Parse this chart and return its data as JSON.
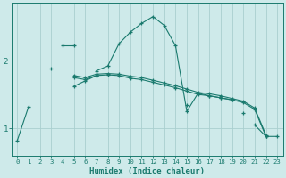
{
  "xlabel": "Humidex (Indice chaleur)",
  "bg_color": "#ceeaea",
  "line_color": "#1a7a6e",
  "grid_color": "#aacfcf",
  "x_ticks": [
    0,
    1,
    2,
    3,
    4,
    5,
    6,
    7,
    8,
    9,
    10,
    11,
    12,
    13,
    14,
    15,
    16,
    17,
    18,
    19,
    20,
    21,
    22,
    23
  ],
  "y_ticks": [
    1,
    2
  ],
  "ylim": [
    0.6,
    2.85
  ],
  "xlim": [
    -0.5,
    23.5
  ],
  "series": [
    {
      "points": [
        [
          0,
          0.82
        ],
        [
          1,
          1.32
        ],
        [
          2,
          null
        ],
        [
          3,
          null
        ],
        [
          4,
          2.22
        ],
        [
          5,
          2.22
        ],
        [
          6,
          null
        ],
        [
          7,
          1.85
        ],
        [
          8,
          1.92
        ],
        [
          9,
          2.25
        ],
        [
          10,
          2.42
        ],
        [
          11,
          2.55
        ],
        [
          12,
          2.65
        ],
        [
          13,
          2.52
        ],
        [
          14,
          2.22
        ],
        [
          15,
          1.25
        ],
        [
          16,
          1.52
        ],
        [
          17,
          1.48
        ],
        [
          18,
          1.45
        ],
        [
          19,
          1.42
        ],
        [
          20,
          null
        ],
        [
          21,
          1.05
        ],
        [
          22,
          0.88
        ],
        [
          23,
          0.88
        ]
      ]
    },
    {
      "points": [
        [
          0,
          null
        ],
        [
          1,
          null
        ],
        [
          2,
          null
        ],
        [
          3,
          1.88
        ],
        [
          4,
          null
        ],
        [
          5,
          1.62
        ],
        [
          6,
          1.7
        ],
        [
          7,
          1.78
        ],
        [
          8,
          null
        ],
        [
          9,
          null
        ],
        [
          10,
          null
        ],
        [
          11,
          null
        ],
        [
          12,
          null
        ],
        [
          13,
          null
        ],
        [
          14,
          null
        ],
        [
          15,
          1.35
        ],
        [
          16,
          null
        ],
        [
          17,
          null
        ],
        [
          18,
          null
        ],
        [
          19,
          null
        ],
        [
          20,
          1.22
        ],
        [
          21,
          null
        ],
        [
          22,
          0.88
        ],
        [
          23,
          null
        ]
      ]
    },
    {
      "points": [
        [
          0,
          null
        ],
        [
          1,
          null
        ],
        [
          2,
          null
        ],
        [
          3,
          null
        ],
        [
          4,
          null
        ],
        [
          5,
          1.75
        ],
        [
          6,
          1.72
        ],
        [
          7,
          1.78
        ],
        [
          8,
          1.79
        ],
        [
          9,
          1.78
        ],
        [
          10,
          1.74
        ],
        [
          11,
          1.72
        ],
        [
          12,
          1.68
        ],
        [
          13,
          1.64
        ],
        [
          14,
          1.6
        ],
        [
          15,
          1.55
        ],
        [
          16,
          1.5
        ],
        [
          17,
          1.48
        ],
        [
          18,
          1.45
        ],
        [
          19,
          1.42
        ],
        [
          20,
          1.38
        ],
        [
          21,
          1.28
        ],
        [
          22,
          0.88
        ],
        [
          23,
          null
        ]
      ]
    },
    {
      "points": [
        [
          0,
          null
        ],
        [
          1,
          null
        ],
        [
          2,
          null
        ],
        [
          3,
          null
        ],
        [
          4,
          null
        ],
        [
          5,
          1.78
        ],
        [
          6,
          1.75
        ],
        [
          7,
          1.8
        ],
        [
          8,
          1.81
        ],
        [
          9,
          1.8
        ],
        [
          10,
          1.77
        ],
        [
          11,
          1.75
        ],
        [
          12,
          1.71
        ],
        [
          13,
          1.67
        ],
        [
          14,
          1.63
        ],
        [
          15,
          1.58
        ],
        [
          16,
          1.53
        ],
        [
          17,
          1.51
        ],
        [
          18,
          1.48
        ],
        [
          19,
          1.44
        ],
        [
          20,
          1.4
        ],
        [
          21,
          1.3
        ],
        [
          22,
          0.9
        ],
        [
          23,
          null
        ]
      ]
    }
  ]
}
